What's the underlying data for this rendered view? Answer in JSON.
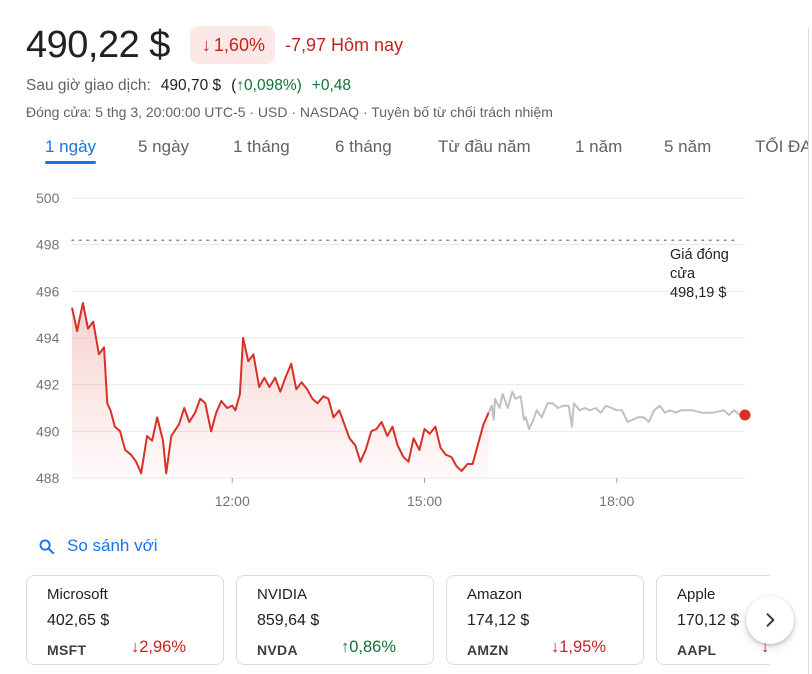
{
  "quote": {
    "price": "490,22 $",
    "change_percent": "1,60%",
    "change_abs_today": "-7,97 Hôm nay",
    "down_arrow_icon": "arrow-down-icon",
    "color_down": "#c5221f",
    "color_up": "#137333",
    "color_accent": "#1a73e8"
  },
  "after_hours": {
    "label": "Sau giờ giao dịch:",
    "price": "490,70 $",
    "percent_open": "(",
    "percent": "0,098%)",
    "abs": "+0,48"
  },
  "closed_note": "Đóng cửa: 5 thg 3, 20:00:00 UTC-5 · USD · NASDAQ · Tuyên bố từ chối trách nhiệm",
  "tabs": [
    {
      "label": "1 ngày",
      "active": true
    },
    {
      "label": "5 ngày",
      "active": false
    },
    {
      "label": "1 tháng",
      "active": false
    },
    {
      "label": "6 tháng",
      "active": false
    },
    {
      "label": "Từ đầu năm",
      "active": false
    },
    {
      "label": "1 năm",
      "active": false
    },
    {
      "label": "5 năm",
      "active": false
    },
    {
      "label": "TỐI ĐA",
      "active": false
    }
  ],
  "chart_data": {
    "type": "line",
    "y_ticks": [
      500,
      498,
      496,
      494,
      492,
      490,
      488
    ],
    "ylim": [
      488,
      500
    ],
    "x_ticks": [
      {
        "label": "12:00",
        "hour": 12
      },
      {
        "label": "15:00",
        "hour": 15
      },
      {
        "label": "18:00",
        "hour": 18
      }
    ],
    "xlim_hours": [
      9.5,
      20
    ],
    "session_close_hour": 16,
    "grid": true,
    "previous_close": {
      "value": 498.19,
      "label_line1": "Giá đóng",
      "label_line2": "cửa",
      "label_line3": "498,19 $"
    },
    "series": [
      {
        "session": "regular",
        "color": "#d93025",
        "points": [
          [
            9.5,
            495.3
          ],
          [
            9.58,
            494.3
          ],
          [
            9.67,
            495.5
          ],
          [
            9.75,
            494.4
          ],
          [
            9.83,
            494.7
          ],
          [
            9.92,
            493.3
          ],
          [
            10.0,
            493.6
          ],
          [
            10.05,
            491.2
          ],
          [
            10.1,
            490.9
          ],
          [
            10.17,
            490.2
          ],
          [
            10.25,
            490.0
          ],
          [
            10.33,
            489.2
          ],
          [
            10.42,
            489.0
          ],
          [
            10.5,
            488.7
          ],
          [
            10.58,
            488.2
          ],
          [
            10.67,
            489.8
          ],
          [
            10.75,
            489.6
          ],
          [
            10.83,
            490.6
          ],
          [
            10.92,
            489.6
          ],
          [
            10.97,
            488.2
          ],
          [
            11.05,
            489.8
          ],
          [
            11.17,
            490.3
          ],
          [
            11.25,
            491.0
          ],
          [
            11.33,
            490.4
          ],
          [
            11.42,
            490.8
          ],
          [
            11.5,
            491.4
          ],
          [
            11.58,
            491.2
          ],
          [
            11.67,
            490.0
          ],
          [
            11.75,
            490.8
          ],
          [
            11.83,
            491.3
          ],
          [
            11.92,
            491.0
          ],
          [
            12.0,
            491.1
          ],
          [
            12.05,
            490.9
          ],
          [
            12.12,
            491.6
          ],
          [
            12.17,
            494.0
          ],
          [
            12.25,
            493.0
          ],
          [
            12.33,
            493.3
          ],
          [
            12.42,
            491.9
          ],
          [
            12.5,
            492.3
          ],
          [
            12.58,
            491.9
          ],
          [
            12.67,
            492.3
          ],
          [
            12.75,
            491.7
          ],
          [
            12.83,
            492.3
          ],
          [
            12.92,
            492.9
          ],
          [
            13.0,
            491.8
          ],
          [
            13.08,
            492.1
          ],
          [
            13.17,
            491.8
          ],
          [
            13.25,
            491.4
          ],
          [
            13.33,
            491.2
          ],
          [
            13.42,
            491.5
          ],
          [
            13.5,
            491.4
          ],
          [
            13.58,
            490.6
          ],
          [
            13.67,
            490.9
          ],
          [
            13.75,
            490.3
          ],
          [
            13.83,
            489.7
          ],
          [
            13.92,
            489.4
          ],
          [
            14.0,
            488.7
          ],
          [
            14.08,
            489.2
          ],
          [
            14.17,
            490.0
          ],
          [
            14.25,
            490.1
          ],
          [
            14.33,
            490.4
          ],
          [
            14.42,
            489.8
          ],
          [
            14.5,
            490.2
          ],
          [
            14.58,
            489.4
          ],
          [
            14.67,
            488.9
          ],
          [
            14.75,
            488.7
          ],
          [
            14.83,
            489.7
          ],
          [
            14.92,
            489.2
          ],
          [
            15.0,
            490.1
          ],
          [
            15.08,
            489.9
          ],
          [
            15.17,
            490.2
          ],
          [
            15.25,
            489.3
          ],
          [
            15.33,
            489.0
          ],
          [
            15.42,
            488.9
          ],
          [
            15.5,
            488.5
          ],
          [
            15.58,
            488.3
          ],
          [
            15.67,
            488.6
          ],
          [
            15.75,
            488.6
          ],
          [
            15.83,
            489.4
          ],
          [
            15.92,
            490.3
          ],
          [
            16.0,
            490.8
          ]
        ]
      },
      {
        "session": "after_hours",
        "color": "#bdc1c6",
        "points": [
          [
            16.0,
            490.8
          ],
          [
            16.05,
            491.1
          ],
          [
            16.08,
            490.5
          ],
          [
            16.1,
            491.4
          ],
          [
            16.17,
            491.0
          ],
          [
            16.22,
            491.6
          ],
          [
            16.3,
            491.0
          ],
          [
            16.37,
            491.7
          ],
          [
            16.42,
            491.4
          ],
          [
            16.5,
            491.5
          ],
          [
            16.55,
            490.5
          ],
          [
            16.58,
            490.6
          ],
          [
            16.63,
            490.1
          ],
          [
            16.7,
            490.5
          ],
          [
            16.75,
            490.9
          ],
          [
            16.83,
            490.6
          ],
          [
            16.92,
            491.2
          ],
          [
            17.0,
            491.2
          ],
          [
            17.08,
            491.0
          ],
          [
            17.17,
            491.1
          ],
          [
            17.25,
            491.1
          ],
          [
            17.3,
            490.2
          ],
          [
            17.33,
            491.2
          ],
          [
            17.42,
            490.9
          ],
          [
            17.5,
            491.0
          ],
          [
            17.58,
            490.9
          ],
          [
            17.67,
            491.0
          ],
          [
            17.75,
            490.8
          ],
          [
            17.83,
            491.1
          ],
          [
            17.92,
            491.0
          ],
          [
            18.0,
            490.9
          ],
          [
            18.08,
            490.9
          ],
          [
            18.17,
            490.4
          ],
          [
            18.25,
            490.5
          ],
          [
            18.33,
            490.6
          ],
          [
            18.42,
            490.6
          ],
          [
            18.5,
            490.4
          ],
          [
            18.58,
            490.9
          ],
          [
            18.67,
            491.1
          ],
          [
            18.75,
            490.8
          ],
          [
            18.83,
            490.9
          ],
          [
            18.92,
            490.8
          ],
          [
            19.0,
            490.9
          ],
          [
            19.17,
            490.9
          ],
          [
            19.33,
            490.8
          ],
          [
            19.5,
            490.8
          ],
          [
            19.67,
            490.9
          ],
          [
            19.75,
            490.7
          ],
          [
            19.83,
            490.9
          ],
          [
            19.92,
            490.7
          ],
          [
            20.0,
            490.7
          ]
        ]
      }
    ],
    "last_point": {
      "hour": 20.0,
      "value": 490.7
    }
  },
  "compare": {
    "label": "So sánh với",
    "icon": "search-icon"
  },
  "compare_cards": [
    {
      "name": "Microsoft",
      "price": "402,65 $",
      "ticker": "MSFT",
      "change": "2,96%",
      "direction": "down"
    },
    {
      "name": "NVIDIA",
      "price": "859,64 $",
      "ticker": "NVDA",
      "change": "0,86%",
      "direction": "up"
    },
    {
      "name": "Amazon",
      "price": "174,12 $",
      "ticker": "AMZN",
      "change": "1,95%",
      "direction": "down"
    },
    {
      "name": "Apple",
      "price": "170,12 $",
      "ticker": "AAPL",
      "change": "",
      "direction": "down"
    }
  ],
  "next_button": {
    "icon": "chevron-right-icon"
  }
}
